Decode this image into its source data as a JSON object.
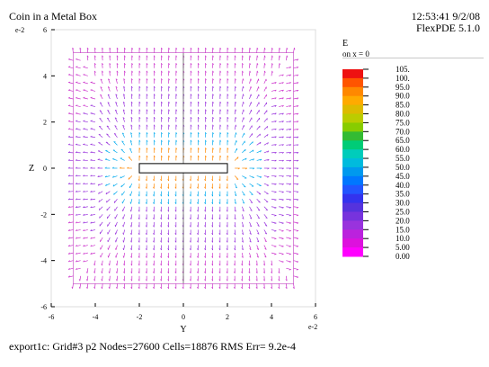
{
  "window": {
    "title": "Coin in a Metal Box",
    "timestamp": "12:53:41 9/2/08",
    "version": "FlexPDE 5.1.0"
  },
  "legend": {
    "title": "E",
    "subtitle": "on x = 0",
    "labels": [
      "105.",
      "100.",
      "95.0",
      "90.0",
      "85.0",
      "80.0",
      "75.0",
      "70.0",
      "65.0",
      "60.0",
      "55.0",
      "50.0",
      "45.0",
      "40.0",
      "35.0",
      "30.0",
      "25.0",
      "20.0",
      "15.0",
      "10.0",
      "5.00",
      "0.00"
    ],
    "colors": [
      "#ee1111",
      "#ff5500",
      "#ff8800",
      "#ffaa00",
      "#ddbb00",
      "#bbcc00",
      "#88cc00",
      "#33bb33",
      "#00cc77",
      "#00ccbb",
      "#00bbdd",
      "#0099ee",
      "#0077ff",
      "#2255ff",
      "#3333ee",
      "#5533dd",
      "#7733dd",
      "#9933dd",
      "#bb22dd",
      "#dd11dd",
      "#ff00ff"
    ]
  },
  "plot": {
    "x_label": "Y",
    "y_label": "Z",
    "x_multiplier": "e-2",
    "y_multiplier": "e-2",
    "x_ticks": [
      "-6",
      "-4",
      "-2",
      "0",
      "2",
      "4",
      "6"
    ],
    "y_ticks": [
      "6",
      "4",
      "2",
      "0",
      "-2",
      "-4",
      "-6"
    ],
    "field_colors": {
      "near": "#ff8800",
      "mid": "#00aaee",
      "far": "#9933dd",
      "outer": "#cc33cc"
    }
  },
  "footer": "export1c:  Grid#3  p2  Nodes=27600 Cells=18876 RMS Err= 9.2e-4",
  "chart_data": {
    "type": "vector-field",
    "title": "Coin in a Metal Box",
    "xlabel": "Y",
    "ylabel": "Z",
    "x_scale": "e-2",
    "y_scale": "e-2",
    "xlim": [
      -6,
      6
    ],
    "ylim": [
      -6,
      6
    ],
    "box": {
      "y": [
        -5,
        5
      ],
      "z": [
        -5,
        5
      ]
    },
    "coin": {
      "y": [
        -2,
        2
      ],
      "z": [
        -0.2,
        0.2
      ]
    },
    "legend_title": "E",
    "legend_subtitle": "on x = 0",
    "scale_min": 0,
    "scale_max": 105,
    "grid": false
  }
}
